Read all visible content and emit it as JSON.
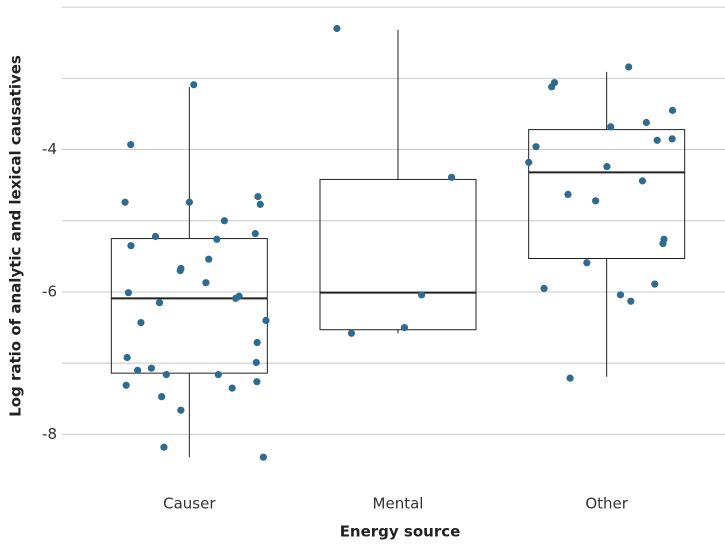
{
  "chart_data": {
    "type": "box",
    "x_label": "Energy source",
    "y_label": "Log ratio of analytic and lexical causatives",
    "categories": [
      "Causer",
      "Mental",
      "Other"
    ],
    "ylim": [
      -8.5,
      -1.9
    ],
    "yticks": [
      -8,
      -6,
      -4
    ],
    "minor_grid": [
      -7,
      -5,
      -3,
      -2
    ],
    "grid": true,
    "point_color": "#2f6b8f",
    "boxes": [
      {
        "whisker_low": -8.32,
        "q1": -7.14,
        "median": -6.09,
        "q3": -5.25,
        "whisker_high": -3.12,
        "points": [
          -4.74,
          -5.22,
          -4.66,
          -3.09,
          -3.93,
          -4.74,
          -4.77,
          -5.0,
          -5.54,
          -5.35,
          -5.18,
          -5.26,
          -5.87,
          -5.7,
          -5.67,
          -6.15,
          -6.01,
          -6.06,
          -6.09,
          -6.4,
          -6.43,
          -6.71,
          -6.99,
          -7.16,
          -7.31,
          -7.26,
          -7.16,
          -7.07,
          -6.92,
          -7.1,
          -7.35,
          -7.66,
          -7.47,
          -8.32,
          -8.18
        ]
      },
      {
        "whisker_low": -6.58,
        "q1": -6.53,
        "median": -6.01,
        "q3": -4.42,
        "whisker_high": -2.32,
        "points": [
          -2.3,
          -4.39,
          -6.04,
          -6.5,
          -6.58
        ]
      },
      {
        "whisker_low": -7.19,
        "q1": -5.53,
        "median": -4.32,
        "q3": -3.72,
        "whisker_high": -2.91,
        "points": [
          -2.84,
          -3.06,
          -3.12,
          -3.45,
          -3.62,
          -3.68,
          -3.85,
          -3.87,
          -3.96,
          -4.18,
          -4.24,
          -4.44,
          -4.63,
          -4.72,
          -5.26,
          -5.32,
          -5.59,
          -5.95,
          -5.89,
          -6.04,
          -6.13,
          -7.21
        ]
      }
    ]
  }
}
